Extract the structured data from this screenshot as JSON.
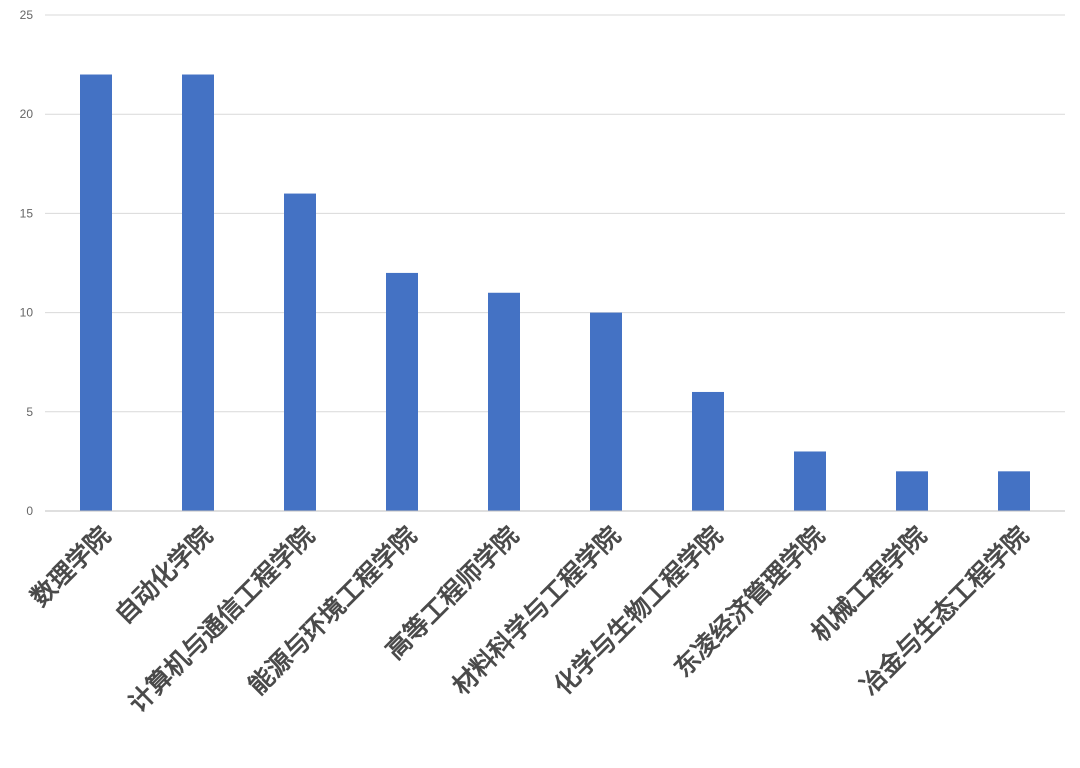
{
  "chart_data": {
    "type": "bar",
    "title": "",
    "xlabel": "",
    "ylabel": "",
    "ylim": [
      0,
      25
    ],
    "yticks": [
      0,
      5,
      10,
      15,
      20,
      25
    ],
    "grid": true,
    "legend": "none",
    "categories": [
      "数理学院",
      "自动化学院",
      "计算机与通信工程学院",
      "能源与环境工程学院",
      "高等工程师学院",
      "材料科学与工程学院",
      "化学与生物工程学院",
      "东凌经济管理学院",
      "机械工程学院",
      "冶金与生态工程学院"
    ],
    "values": [
      22,
      22,
      16,
      12,
      11,
      10,
      6,
      3,
      2,
      2
    ],
    "colors": {
      "bar": "#4472C4",
      "grid": "#d9d9d9",
      "axis": "#bfbfbf",
      "tick_text": "#666666",
      "category_text": "#4a4a4a"
    }
  }
}
